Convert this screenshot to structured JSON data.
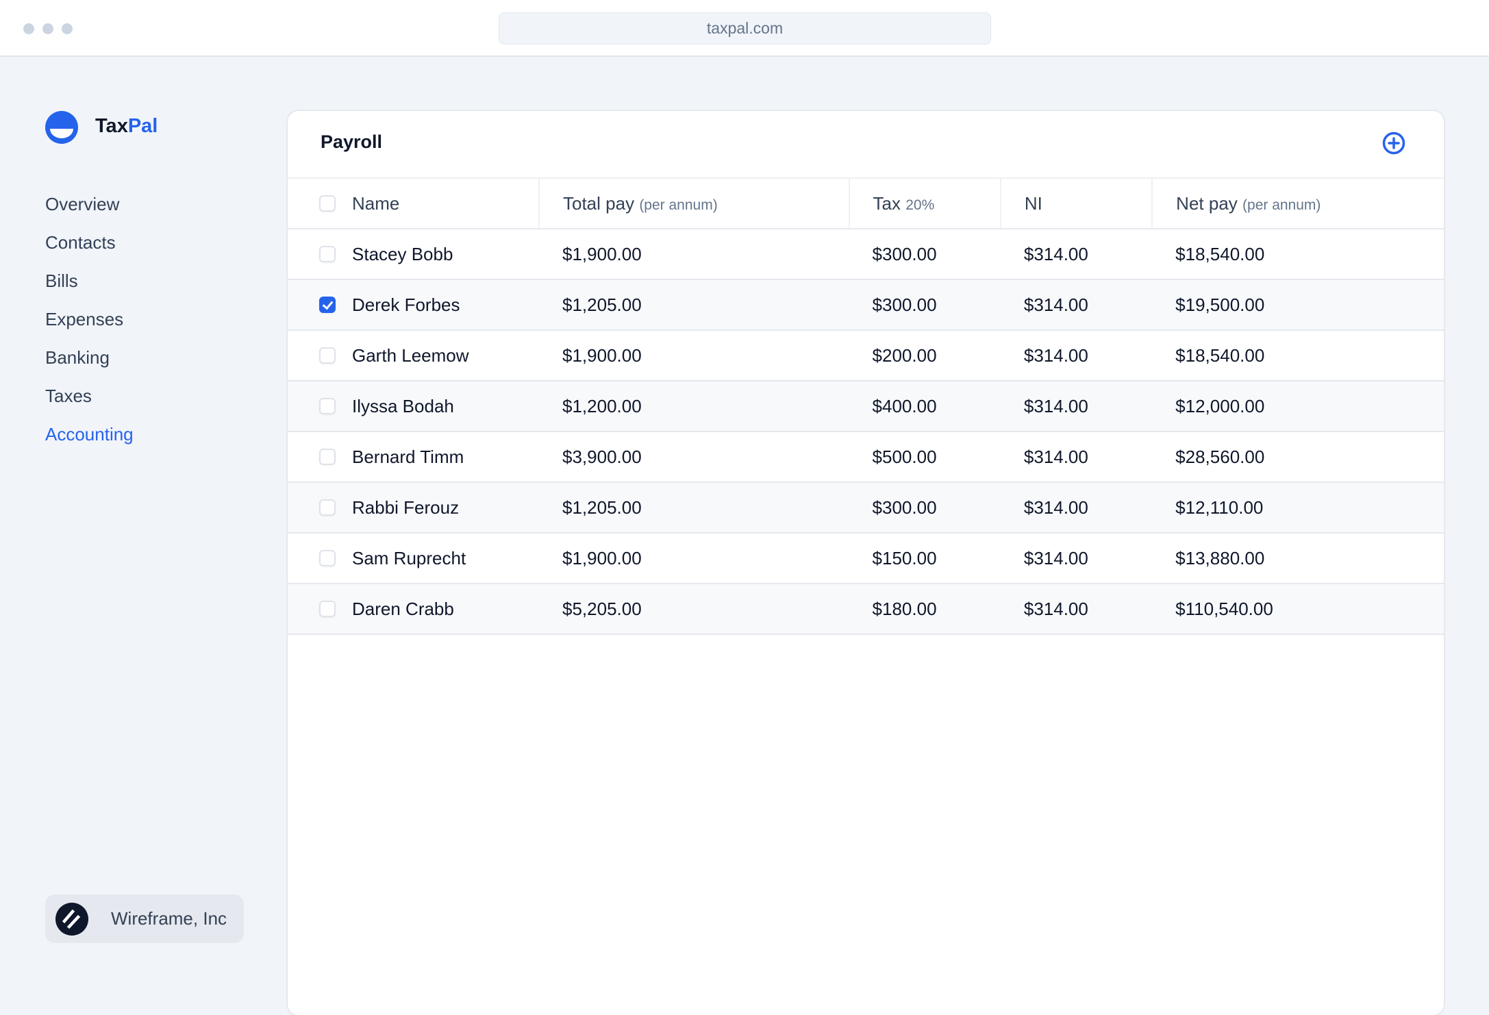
{
  "browser": {
    "url": "taxpal.com"
  },
  "brand": {
    "name_part1": "Tax",
    "name_part2": "Pal",
    "accent": "#2563eb"
  },
  "sidebar": {
    "items": [
      {
        "label": "Overview",
        "active": false
      },
      {
        "label": "Contacts",
        "active": false
      },
      {
        "label": "Bills",
        "active": false
      },
      {
        "label": "Expenses",
        "active": false
      },
      {
        "label": "Banking",
        "active": false
      },
      {
        "label": "Taxes",
        "active": false
      },
      {
        "label": "Accounting",
        "active": true
      }
    ],
    "org": "Wireframe, Inc"
  },
  "main": {
    "title": "Payroll",
    "add_icon": "plus-circle-icon",
    "columns": [
      {
        "label": "Name",
        "sub": ""
      },
      {
        "label": "Total pay",
        "sub": "(per annum)"
      },
      {
        "label": "Tax",
        "sub": "20%"
      },
      {
        "label": "NI",
        "sub": ""
      },
      {
        "label": "Net pay",
        "sub": "(per annum)"
      }
    ],
    "rows": [
      {
        "checked": false,
        "name": "Stacey Bobb",
        "total": "$1,900.00",
        "tax": "$300.00",
        "ni": "$314.00",
        "net": "$18,540.00"
      },
      {
        "checked": true,
        "name": "Derek Forbes",
        "total": "$1,205.00",
        "tax": "$300.00",
        "ni": "$314.00",
        "net": "$19,500.00"
      },
      {
        "checked": false,
        "name": "Garth Leemow",
        "total": "$1,900.00",
        "tax": "$200.00",
        "ni": "$314.00",
        "net": "$18,540.00"
      },
      {
        "checked": false,
        "name": "Ilyssa Bodah",
        "total": "$1,200.00",
        "tax": "$400.00",
        "ni": "$314.00",
        "net": "$12,000.00"
      },
      {
        "checked": false,
        "name": "Bernard Timm",
        "total": "$3,900.00",
        "tax": "$500.00",
        "ni": "$314.00",
        "net": "$28,560.00"
      },
      {
        "checked": false,
        "name": "Rabbi Ferouz",
        "total": "$1,205.00",
        "tax": "$300.00",
        "ni": "$314.00",
        "net": "$12,110.00"
      },
      {
        "checked": false,
        "name": "Sam Ruprecht",
        "total": "$1,900.00",
        "tax": "$150.00",
        "ni": "$314.00",
        "net": "$13,880.00"
      },
      {
        "checked": false,
        "name": "Daren Crabb",
        "total": "$5,205.00",
        "tax": "$180.00",
        "ni": "$314.00",
        "net": "$110,540.00"
      }
    ]
  }
}
